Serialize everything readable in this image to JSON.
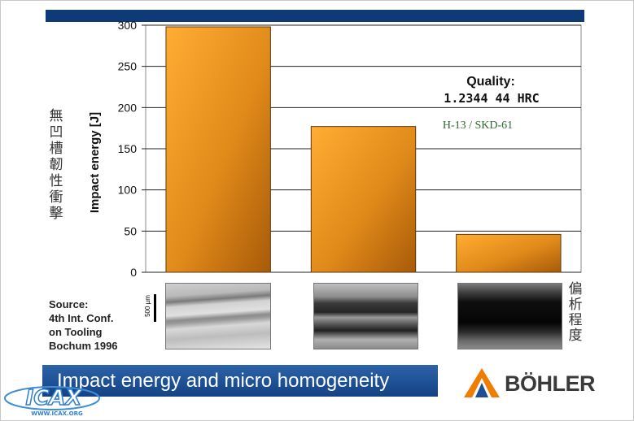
{
  "left_vertical_label": "無凹槽韌性衝擊",
  "right_vertical_label": "偏析程度",
  "source": [
    "Source:",
    "4th Int. Conf.",
    "on Tooling",
    "Bochum 1996"
  ],
  "scale_label": "500 µm",
  "banner": "Impact energy and micro homogeneity",
  "brand": "BÖHLER",
  "watermark": "ICAX",
  "watermark_url": "WWW.ICAX.ORG",
  "colors": {
    "bar_light": "#ffad33",
    "bar_dark": "#a85a08",
    "header": "#0e3a78",
    "banner": "#1d4f94",
    "brand_orange": "#f07d00"
  },
  "chart_data": {
    "type": "bar",
    "categories": [
      "",
      "",
      ""
    ],
    "values": [
      298,
      177,
      46
    ],
    "ylabel": "Impact energy [J]",
    "ylim": [
      0,
      300
    ],
    "yticks": [
      0,
      50,
      100,
      150,
      200,
      250,
      300
    ],
    "grid": true,
    "annotation_title": "Quality:",
    "annotation_value": "1.2344 44 HRC",
    "annotation_sub": "H-13 / SKD-61"
  }
}
